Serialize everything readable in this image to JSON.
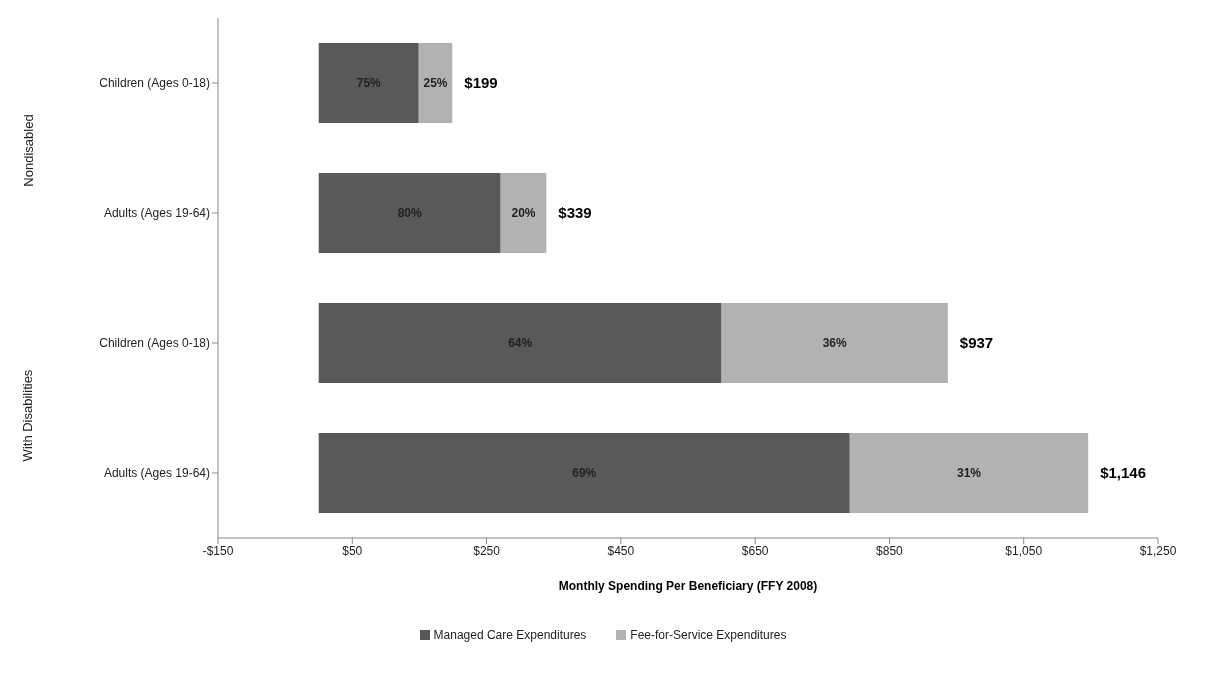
{
  "chart_data": {
    "type": "bar",
    "orientation": "horizontal",
    "stacked": true,
    "categories": [
      "Children (Ages 0-18)",
      "Adults (Ages 19-64)",
      "Children (Ages 0-18)",
      "Adults (Ages 19-64)"
    ],
    "series": [
      {
        "name": "Managed Care Expenditures",
        "color": "#595959",
        "values": [
          149,
          271,
          600,
          791
        ]
      },
      {
        "name": "Fee-for-Service Expenditures",
        "color": "#b2b2b2",
        "values": [
          50,
          68,
          337,
          355
        ]
      }
    ],
    "totals": [
      "$199",
      "$339",
      "$937",
      "$1,146"
    ],
    "xlabel": "Monthly Spending Per Beneficiary (FFY 2008)",
    "xlim": [
      -150,
      1250
    ],
    "xticks": [
      {
        "value": -150,
        "label": "-$150"
      },
      {
        "value": 50,
        "label": "$50"
      },
      {
        "value": 250,
        "label": "$250"
      },
      {
        "value": 450,
        "label": "$450"
      },
      {
        "value": 650,
        "label": "$650"
      },
      {
        "value": 850,
        "label": "$850"
      },
      {
        "value": 1050,
        "label": "$1,050"
      },
      {
        "value": 1250,
        "label": "$1,250"
      }
    ],
    "annotations": [
      "Nondisabled",
      "With Disabilities",
      "75%",
      "25%",
      "80%",
      "20%",
      "64%",
      "36%",
      "69%",
      "31%"
    ],
    "grid": false,
    "legend": "bottom"
  }
}
